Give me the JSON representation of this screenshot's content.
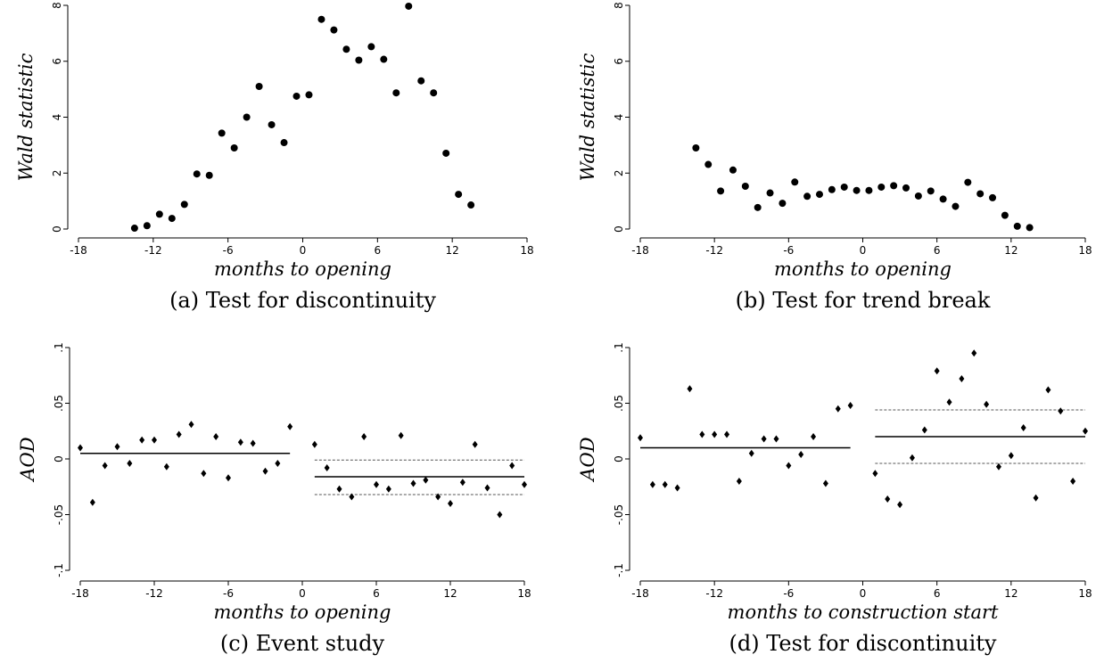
{
  "chart_data": [
    {
      "type": "scatter",
      "panel": "a",
      "caption": "(a) Test for discontinuity",
      "xlabel": "months to opening",
      "ylabel": "Wald statistic",
      "xlim": [
        -18,
        18
      ],
      "ylim": [
        0,
        8
      ],
      "xticks": [
        -18,
        -12,
        -6,
        0,
        6,
        12,
        18
      ],
      "xtick_labels": [
        "-18",
        "-12",
        "-6",
        "0",
        "6",
        "12",
        "18"
      ],
      "yticks": [
        0,
        2,
        4,
        6,
        8
      ],
      "ytick_labels": [
        "0",
        "2",
        "4",
        "6",
        "8"
      ],
      "marker": "circle",
      "points": [
        {
          "x": -13.5,
          "y": 0.03
        },
        {
          "x": -12.5,
          "y": 0.12
        },
        {
          "x": -11.5,
          "y": 0.53
        },
        {
          "x": -10.5,
          "y": 0.38
        },
        {
          "x": -9.5,
          "y": 0.88
        },
        {
          "x": -8.5,
          "y": 1.97
        },
        {
          "x": -7.5,
          "y": 1.92
        },
        {
          "x": -6.5,
          "y": 3.43
        },
        {
          "x": -5.5,
          "y": 2.9
        },
        {
          "x": -4.5,
          "y": 4.0
        },
        {
          "x": -3.5,
          "y": 5.1
        },
        {
          "x": -2.5,
          "y": 3.73
        },
        {
          "x": -1.5,
          "y": 3.09
        },
        {
          "x": -0.5,
          "y": 4.75
        },
        {
          "x": 0.5,
          "y": 4.8
        },
        {
          "x": 1.5,
          "y": 7.5
        },
        {
          "x": 2.5,
          "y": 7.12
        },
        {
          "x": 3.5,
          "y": 6.43
        },
        {
          "x": 4.5,
          "y": 6.04
        },
        {
          "x": 5.5,
          "y": 6.52
        },
        {
          "x": 6.5,
          "y": 6.07
        },
        {
          "x": 7.5,
          "y": 4.87
        },
        {
          "x": 8.5,
          "y": 7.97
        },
        {
          "x": 9.5,
          "y": 5.3
        },
        {
          "x": 10.5,
          "y": 4.87
        },
        {
          "x": 11.5,
          "y": 2.71
        },
        {
          "x": 12.5,
          "y": 1.24
        },
        {
          "x": 13.5,
          "y": 0.86
        }
      ]
    },
    {
      "type": "scatter",
      "panel": "b",
      "caption": "(b) Test for trend break",
      "xlabel": "months to opening",
      "ylabel": "Wald statistic",
      "xlim": [
        -18,
        18
      ],
      "ylim": [
        0,
        8
      ],
      "xticks": [
        -18,
        -12,
        -6,
        0,
        6,
        12,
        18
      ],
      "xtick_labels": [
        "-18",
        "-12",
        "-6",
        "0",
        "6",
        "12",
        "18"
      ],
      "yticks": [
        0,
        2,
        4,
        6,
        8
      ],
      "ytick_labels": [
        "0",
        "2",
        "4",
        "6",
        "8"
      ],
      "marker": "circle",
      "points": [
        {
          "x": -13.5,
          "y": 2.9
        },
        {
          "x": -12.5,
          "y": 2.31
        },
        {
          "x": -11.5,
          "y": 1.36
        },
        {
          "x": -10.5,
          "y": 2.11
        },
        {
          "x": -9.5,
          "y": 1.53
        },
        {
          "x": -8.5,
          "y": 0.77
        },
        {
          "x": -7.5,
          "y": 1.29
        },
        {
          "x": -6.5,
          "y": 0.92
        },
        {
          "x": -5.5,
          "y": 1.68
        },
        {
          "x": -4.5,
          "y": 1.17
        },
        {
          "x": -3.5,
          "y": 1.24
        },
        {
          "x": -2.5,
          "y": 1.41
        },
        {
          "x": -1.5,
          "y": 1.5
        },
        {
          "x": -0.5,
          "y": 1.38
        },
        {
          "x": 0.5,
          "y": 1.38
        },
        {
          "x": 1.5,
          "y": 1.5
        },
        {
          "x": 2.5,
          "y": 1.55
        },
        {
          "x": 3.5,
          "y": 1.47
        },
        {
          "x": 4.5,
          "y": 1.18
        },
        {
          "x": 5.5,
          "y": 1.36
        },
        {
          "x": 6.5,
          "y": 1.07
        },
        {
          "x": 7.5,
          "y": 0.81
        },
        {
          "x": 8.5,
          "y": 1.67
        },
        {
          "x": 9.5,
          "y": 1.26
        },
        {
          "x": 10.5,
          "y": 1.12
        },
        {
          "x": 11.5,
          "y": 0.49
        },
        {
          "x": 12.5,
          "y": 0.1
        },
        {
          "x": 13.5,
          "y": 0.05
        }
      ]
    },
    {
      "type": "scatter",
      "panel": "c",
      "caption": "(c) Event study",
      "xlabel": "months to opening",
      "ylabel": "AOD",
      "xlim": [
        -18,
        18
      ],
      "ylim": [
        -0.1,
        0.1
      ],
      "xticks": [
        -18,
        -12,
        -6,
        0,
        6,
        12,
        18
      ],
      "xtick_labels": [
        "-18",
        "-12",
        "-6",
        "0",
        "6",
        "12",
        "18"
      ],
      "yticks": [
        -0.1,
        -0.05,
        0,
        0.05,
        0.1
      ],
      "ytick_labels": [
        "-.1",
        "-.05",
        "0",
        ".05",
        ".1"
      ],
      "marker": "diamond",
      "points": [
        {
          "x": -18,
          "y": 0.01
        },
        {
          "x": -17,
          "y": -0.039
        },
        {
          "x": -16,
          "y": -0.006
        },
        {
          "x": -15,
          "y": 0.011
        },
        {
          "x": -14,
          "y": -0.004
        },
        {
          "x": -13,
          "y": 0.017
        },
        {
          "x": -12,
          "y": 0.017
        },
        {
          "x": -11,
          "y": -0.007
        },
        {
          "x": -10,
          "y": 0.022
        },
        {
          "x": -9,
          "y": 0.031
        },
        {
          "x": -8,
          "y": -0.013
        },
        {
          "x": -7,
          "y": 0.02
        },
        {
          "x": -6,
          "y": -0.017
        },
        {
          "x": -5,
          "y": 0.015
        },
        {
          "x": -4,
          "y": 0.014
        },
        {
          "x": -3,
          "y": -0.011
        },
        {
          "x": -2,
          "y": -0.004
        },
        {
          "x": -1,
          "y": 0.029
        },
        {
          "x": 1,
          "y": 0.013
        },
        {
          "x": 2,
          "y": -0.008
        },
        {
          "x": 3,
          "y": -0.027
        },
        {
          "x": 4,
          "y": -0.034
        },
        {
          "x": 5,
          "y": 0.02
        },
        {
          "x": 6,
          "y": -0.023
        },
        {
          "x": 7,
          "y": -0.027
        },
        {
          "x": 8,
          "y": 0.021
        },
        {
          "x": 9,
          "y": -0.022
        },
        {
          "x": 10,
          "y": -0.019
        },
        {
          "x": 11,
          "y": -0.034
        },
        {
          "x": 12,
          "y": -0.04
        },
        {
          "x": 13,
          "y": -0.021
        },
        {
          "x": 14,
          "y": 0.013
        },
        {
          "x": 15,
          "y": -0.026
        },
        {
          "x": 16,
          "y": -0.05
        },
        {
          "x": 17,
          "y": -0.006
        },
        {
          "x": 18,
          "y": -0.023
        }
      ],
      "lines": [
        {
          "x": [
            -18,
            -1
          ],
          "y": 0.005,
          "style": "solid"
        },
        {
          "x": [
            1,
            18
          ],
          "y": -0.016,
          "style": "solid"
        },
        {
          "x": [
            1,
            18
          ],
          "y": -0.001,
          "style": "dashed"
        },
        {
          "x": [
            1,
            18
          ],
          "y": -0.032,
          "style": "dashed"
        }
      ]
    },
    {
      "type": "scatter",
      "panel": "d",
      "caption": "(d) Test for discontinuity",
      "xlabel": "months to construction start",
      "ylabel": "AOD",
      "xlim": [
        -18,
        18
      ],
      "ylim": [
        -0.1,
        0.1
      ],
      "xticks": [
        -18,
        -12,
        -6,
        0,
        6,
        12,
        18
      ],
      "xtick_labels": [
        "-18",
        "-12",
        "-6",
        "0",
        "6",
        "12",
        "18"
      ],
      "yticks": [
        -0.1,
        -0.05,
        0,
        0.05,
        0.1
      ],
      "ytick_labels": [
        "-.1",
        "-.05",
        "0",
        ".05",
        ".1"
      ],
      "marker": "diamond",
      "points": [
        {
          "x": -18,
          "y": 0.019
        },
        {
          "x": -17,
          "y": -0.023
        },
        {
          "x": -16,
          "y": -0.023
        },
        {
          "x": -15,
          "y": -0.026
        },
        {
          "x": -14,
          "y": 0.063
        },
        {
          "x": -13,
          "y": 0.022
        },
        {
          "x": -12,
          "y": 0.022
        },
        {
          "x": -11,
          "y": 0.022
        },
        {
          "x": -10,
          "y": -0.02
        },
        {
          "x": -9,
          "y": 0.005
        },
        {
          "x": -8,
          "y": 0.018
        },
        {
          "x": -7,
          "y": 0.018
        },
        {
          "x": -6,
          "y": -0.006
        },
        {
          "x": -5,
          "y": 0.004
        },
        {
          "x": -4,
          "y": 0.02
        },
        {
          "x": -3,
          "y": -0.022
        },
        {
          "x": -2,
          "y": 0.045
        },
        {
          "x": -1,
          "y": 0.048
        },
        {
          "x": 1,
          "y": -0.013
        },
        {
          "x": 2,
          "y": -0.036
        },
        {
          "x": 3,
          "y": -0.041
        },
        {
          "x": 4,
          "y": 0.001
        },
        {
          "x": 5,
          "y": 0.026
        },
        {
          "x": 6,
          "y": 0.079
        },
        {
          "x": 7,
          "y": 0.051
        },
        {
          "x": 8,
          "y": 0.072
        },
        {
          "x": 9,
          "y": 0.095
        },
        {
          "x": 10,
          "y": 0.049
        },
        {
          "x": 11,
          "y": -0.007
        },
        {
          "x": 12,
          "y": 0.003
        },
        {
          "x": 13,
          "y": 0.028
        },
        {
          "x": 14,
          "y": -0.035
        },
        {
          "x": 15,
          "y": 0.062
        },
        {
          "x": 16,
          "y": 0.043
        },
        {
          "x": 17,
          "y": -0.02
        },
        {
          "x": 18,
          "y": 0.025
        }
      ],
      "lines": [
        {
          "x": [
            -18,
            -1
          ],
          "y": 0.01,
          "style": "solid"
        },
        {
          "x": [
            1,
            18
          ],
          "y": 0.02,
          "style": "solid"
        },
        {
          "x": [
            1,
            18
          ],
          "y": 0.044,
          "style": "dashed"
        },
        {
          "x": [
            1,
            18
          ],
          "y": -0.004,
          "style": "dashed"
        }
      ]
    }
  ]
}
